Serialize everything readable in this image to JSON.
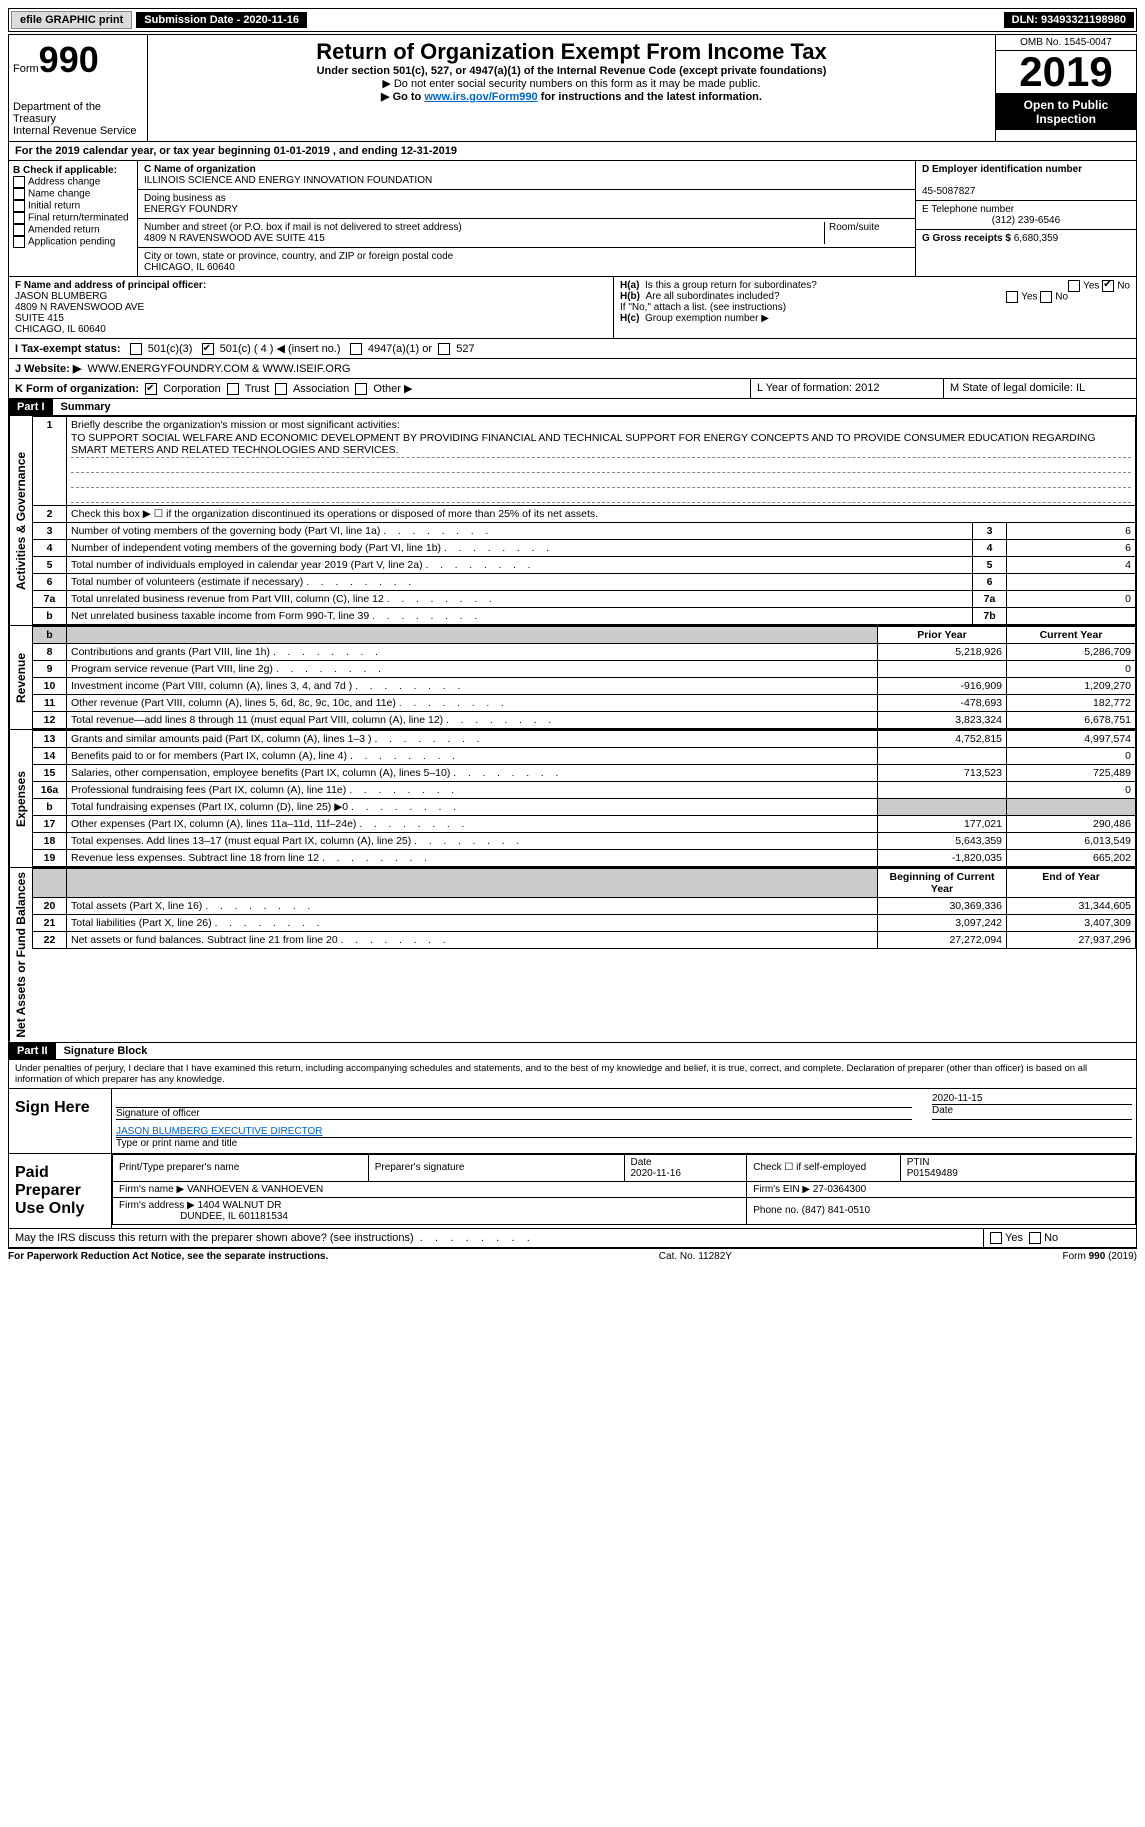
{
  "topbar": {
    "efile": "efile GRAPHIC print",
    "submission_label": "Submission Date - 2020-11-16",
    "dln_label": "DLN: 93493321198980"
  },
  "header": {
    "form_prefix": "Form",
    "form_number": "990",
    "dept1": "Department of the Treasury",
    "dept2": "Internal Revenue Service",
    "title": "Return of Organization Exempt From Income Tax",
    "subtitle1": "Under section 501(c), 527, or 4947(a)(1) of the Internal Revenue Code (except private foundations)",
    "subtitle2": "▶ Do not enter social security numbers on this form as it may be made public.",
    "subtitle3_pre": "▶ Go to ",
    "subtitle3_link": "www.irs.gov/Form990",
    "subtitle3_post": " for instructions and the latest information.",
    "omb": "OMB No. 1545-0047",
    "year": "2019",
    "inspect": "Open to Public Inspection"
  },
  "lineA": "For the 2019 calendar year, or tax year beginning 01-01-2019    , and ending 12-31-2019",
  "boxB": {
    "label": "B Check if applicable:",
    "items": [
      "Address change",
      "Name change",
      "Initial return",
      "Final return/terminated",
      "Amended return",
      "Application pending"
    ]
  },
  "boxC": {
    "name_label": "C Name of organization",
    "name": "ILLINOIS SCIENCE AND ENERGY INNOVATION FOUNDATION",
    "dba_label": "Doing business as",
    "dba": "ENERGY FOUNDRY",
    "street_label": "Number and street (or P.O. box if mail is not delivered to street address)",
    "suite_label": "Room/suite",
    "street": "4809 N RAVENSWOOD AVE SUITE 415",
    "city_label": "City or town, state or province, country, and ZIP or foreign postal code",
    "city": "CHICAGO, IL  60640"
  },
  "boxD": {
    "label": "D Employer identification number",
    "value": "45-5087827"
  },
  "boxE": {
    "label": "E Telephone number",
    "value": "(312) 239-6546"
  },
  "boxG": {
    "label": "G Gross receipts $",
    "value": "6,680,359"
  },
  "boxF": {
    "label": "F  Name and address of principal officer:",
    "name": "JASON BLUMBERG",
    "addr1": "4809 N RAVENSWOOD AVE",
    "addr2": "SUITE 415",
    "addr3": "CHICAGO, IL  60640"
  },
  "boxH": {
    "a": "Is this a group return for subordinates?",
    "b": "Are all subordinates included?",
    "ifno": "If \"No,\" attach a list. (see instructions)",
    "c": "Group exemption number ▶",
    "yes": "Yes",
    "no": "No"
  },
  "boxI": {
    "label": "I    Tax-exempt status:",
    "c3": "501(c)(3)",
    "c": "501(c) ( 4 ) ◀ (insert no.)",
    "a": "4947(a)(1) or",
    "five27": "527"
  },
  "boxJ": {
    "label": "J    Website: ▶",
    "value": "WWW.ENERGYFOUNDRY.COM & WWW.ISEIF.ORG"
  },
  "boxK": {
    "label": "K Form of organization:",
    "corp": "Corporation",
    "trust": "Trust",
    "assoc": "Association",
    "other": "Other ▶"
  },
  "boxL": {
    "label": "L Year of formation: 2012"
  },
  "boxM": {
    "label": "M State of legal domicile: IL"
  },
  "part1": {
    "header": "Part I",
    "title": "Summary",
    "q1": "Briefly describe the organization's mission or most significant activities:",
    "mission": "TO SUPPORT SOCIAL WELFARE AND ECONOMIC DEVELOPMENT BY PROVIDING FINANCIAL AND TECHNICAL SUPPORT FOR ENERGY CONCEPTS AND TO PROVIDE CONSUMER EDUCATION REGARDING SMART METERS AND RELATED TECHNOLOGIES AND SERVICES.",
    "q2": "Check this box ▶ ☐  if the organization discontinued its operations or disposed of more than 25% of its net assets.",
    "governance_label": "Activities & Governance",
    "revenue_label": "Revenue",
    "expenses_label": "Expenses",
    "netassets_label": "Net Assets or Fund Balances",
    "col_prior": "Prior Year",
    "col_current": "Current Year",
    "col_beg": "Beginning of Current Year",
    "col_end": "End of Year",
    "rows_gov": [
      {
        "n": "3",
        "d": "Number of voting members of the governing body (Part VI, line 1a)",
        "box": "3",
        "v": "6"
      },
      {
        "n": "4",
        "d": "Number of independent voting members of the governing body (Part VI, line 1b)",
        "box": "4",
        "v": "6"
      },
      {
        "n": "5",
        "d": "Total number of individuals employed in calendar year 2019 (Part V, line 2a)",
        "box": "5",
        "v": "4"
      },
      {
        "n": "6",
        "d": "Total number of volunteers (estimate if necessary)",
        "box": "6",
        "v": ""
      },
      {
        "n": "7a",
        "d": "Total unrelated business revenue from Part VIII, column (C), line 12",
        "box": "7a",
        "v": "0"
      },
      {
        "n": "b",
        "d": "Net unrelated business taxable income from Form 990-T, line 39",
        "box": "7b",
        "v": ""
      }
    ],
    "rows_rev": [
      {
        "n": "8",
        "d": "Contributions and grants (Part VIII, line 1h)",
        "p": "5,218,926",
        "c": "5,286,709"
      },
      {
        "n": "9",
        "d": "Program service revenue (Part VIII, line 2g)",
        "p": "",
        "c": "0"
      },
      {
        "n": "10",
        "d": "Investment income (Part VIII, column (A), lines 3, 4, and 7d )",
        "p": "-916,909",
        "c": "1,209,270"
      },
      {
        "n": "11",
        "d": "Other revenue (Part VIII, column (A), lines 5, 6d, 8c, 9c, 10c, and 11e)",
        "p": "-478,693",
        "c": "182,772"
      },
      {
        "n": "12",
        "d": "Total revenue—add lines 8 through 11 (must equal Part VIII, column (A), line 12)",
        "p": "3,823,324",
        "c": "6,678,751"
      }
    ],
    "rows_exp": [
      {
        "n": "13",
        "d": "Grants and similar amounts paid (Part IX, column (A), lines 1–3 )",
        "p": "4,752,815",
        "c": "4,997,574"
      },
      {
        "n": "14",
        "d": "Benefits paid to or for members (Part IX, column (A), line 4)",
        "p": "",
        "c": "0"
      },
      {
        "n": "15",
        "d": "Salaries, other compensation, employee benefits (Part IX, column (A), lines 5–10)",
        "p": "713,523",
        "c": "725,489"
      },
      {
        "n": "16a",
        "d": "Professional fundraising fees (Part IX, column (A), line 11e)",
        "p": "",
        "c": "0"
      },
      {
        "n": "b",
        "d": "Total fundraising expenses (Part IX, column (D), line 25) ▶0",
        "p": "SHADE",
        "c": "SHADE"
      },
      {
        "n": "17",
        "d": "Other expenses (Part IX, column (A), lines 11a–11d, 11f–24e)",
        "p": "177,021",
        "c": "290,486"
      },
      {
        "n": "18",
        "d": "Total expenses. Add lines 13–17 (must equal Part IX, column (A), line 25)",
        "p": "5,643,359",
        "c": "6,013,549"
      },
      {
        "n": "19",
        "d": "Revenue less expenses. Subtract line 18 from line 12",
        "p": "-1,820,035",
        "c": "665,202"
      }
    ],
    "rows_net": [
      {
        "n": "20",
        "d": "Total assets (Part X, line 16)",
        "p": "30,369,336",
        "c": "31,344,605"
      },
      {
        "n": "21",
        "d": "Total liabilities (Part X, line 26)",
        "p": "3,097,242",
        "c": "3,407,309"
      },
      {
        "n": "22",
        "d": "Net assets or fund balances. Subtract line 21 from line 20",
        "p": "27,272,094",
        "c": "27,937,296"
      }
    ]
  },
  "part2": {
    "header": "Part II",
    "title": "Signature Block",
    "decl": "Under penalties of perjury, I declare that I have examined this return, including accompanying schedules and statements, and to the best of my knowledge and belief, it is true, correct, and complete. Declaration of preparer (other than officer) is based on all information of which preparer has any knowledge.",
    "sign_here": "Sign Here",
    "sig_officer": "Signature of officer",
    "date": "Date",
    "date_val": "2020-11-15",
    "name_title": "JASON BLUMBERG  EXECUTIVE DIRECTOR",
    "name_label": "Type or print name and title",
    "paid": "Paid Preparer Use Only",
    "prep_name_label": "Print/Type preparer's name",
    "prep_sig_label": "Preparer's signature",
    "prep_date_label": "Date",
    "prep_date": "2020-11-16",
    "check_self": "Check ☐ if self-employed",
    "ptin_label": "PTIN",
    "ptin": "P01549489",
    "firm_name_label": "Firm's name    ▶",
    "firm_name": "VANHOEVEN & VANHOEVEN",
    "firm_ein_label": "Firm's EIN ▶",
    "firm_ein": "27-0364300",
    "firm_addr_label": "Firm's address ▶",
    "firm_addr": "1404 WALNUT DR",
    "firm_city": "DUNDEE, IL  601181534",
    "phone_label": "Phone no.",
    "phone": "(847) 841-0510",
    "discuss": "May the IRS discuss this return with the preparer shown above? (see instructions)",
    "yes": "Yes",
    "no": "No"
  },
  "footer": {
    "left": "For Paperwork Reduction Act Notice, see the separate instructions.",
    "mid": "Cat. No. 11282Y",
    "right": "Form 990 (2019)"
  }
}
